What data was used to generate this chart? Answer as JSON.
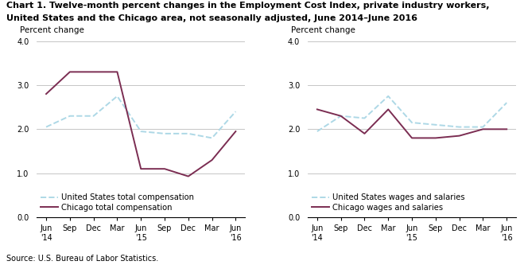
{
  "title_line1": "Chart 1. Twelve-month percent changes in the Employment Cost Index, private industry workers,",
  "title_line2": "United States and the Chicago area, not seasonally adjusted, June 2014–June 2016",
  "source": "Source: U.S. Bureau of Labor Statistics.",
  "x_labels": [
    "Jun\n'14",
    "Sep",
    "Dec",
    "Mar",
    "Jun\n'15",
    "Sep",
    "Dec",
    "Mar",
    "Jun\n'16"
  ],
  "x_positions": [
    0,
    1,
    2,
    3,
    4,
    5,
    6,
    7,
    8
  ],
  "left": {
    "us_total": [
      2.05,
      2.3,
      2.3,
      2.75,
      1.95,
      1.9,
      1.9,
      1.8,
      2.4
    ],
    "chicago_total": [
      2.8,
      3.3,
      3.3,
      3.3,
      1.1,
      1.1,
      0.93,
      1.3,
      1.95
    ],
    "ylabel": "Percent change",
    "ylim": [
      0.0,
      4.0
    ],
    "yticks": [
      0.0,
      1.0,
      2.0,
      3.0,
      4.0
    ],
    "legend_us": "United States total compensation",
    "legend_chicago": "Chicago total compensation"
  },
  "right": {
    "us_wages": [
      1.95,
      2.3,
      2.25,
      2.75,
      2.15,
      2.1,
      2.05,
      2.05,
      2.6
    ],
    "chicago_wages": [
      2.45,
      2.3,
      1.9,
      2.45,
      1.8,
      1.8,
      1.85,
      2.0,
      2.0
    ],
    "ylabel": "Percent change",
    "ylim": [
      0.0,
      4.0
    ],
    "yticks": [
      0.0,
      1.0,
      2.0,
      3.0,
      4.0
    ],
    "legend_us": "United States wages and salaries",
    "legend_chicago": "Chicago wages and salaries"
  },
  "us_color": "#add8e6",
  "chicago_color": "#7B2D52",
  "us_linestyle": "--",
  "chicago_linestyle": "-",
  "linewidth": 1.4,
  "background_color": "#ffffff",
  "grid_color": "#bbbbbb",
  "title_fontsize": 8.0,
  "ylabel_fontsize": 7.5,
  "tick_fontsize": 7.0,
  "legend_fontsize": 7.2,
  "source_fontsize": 7.0
}
